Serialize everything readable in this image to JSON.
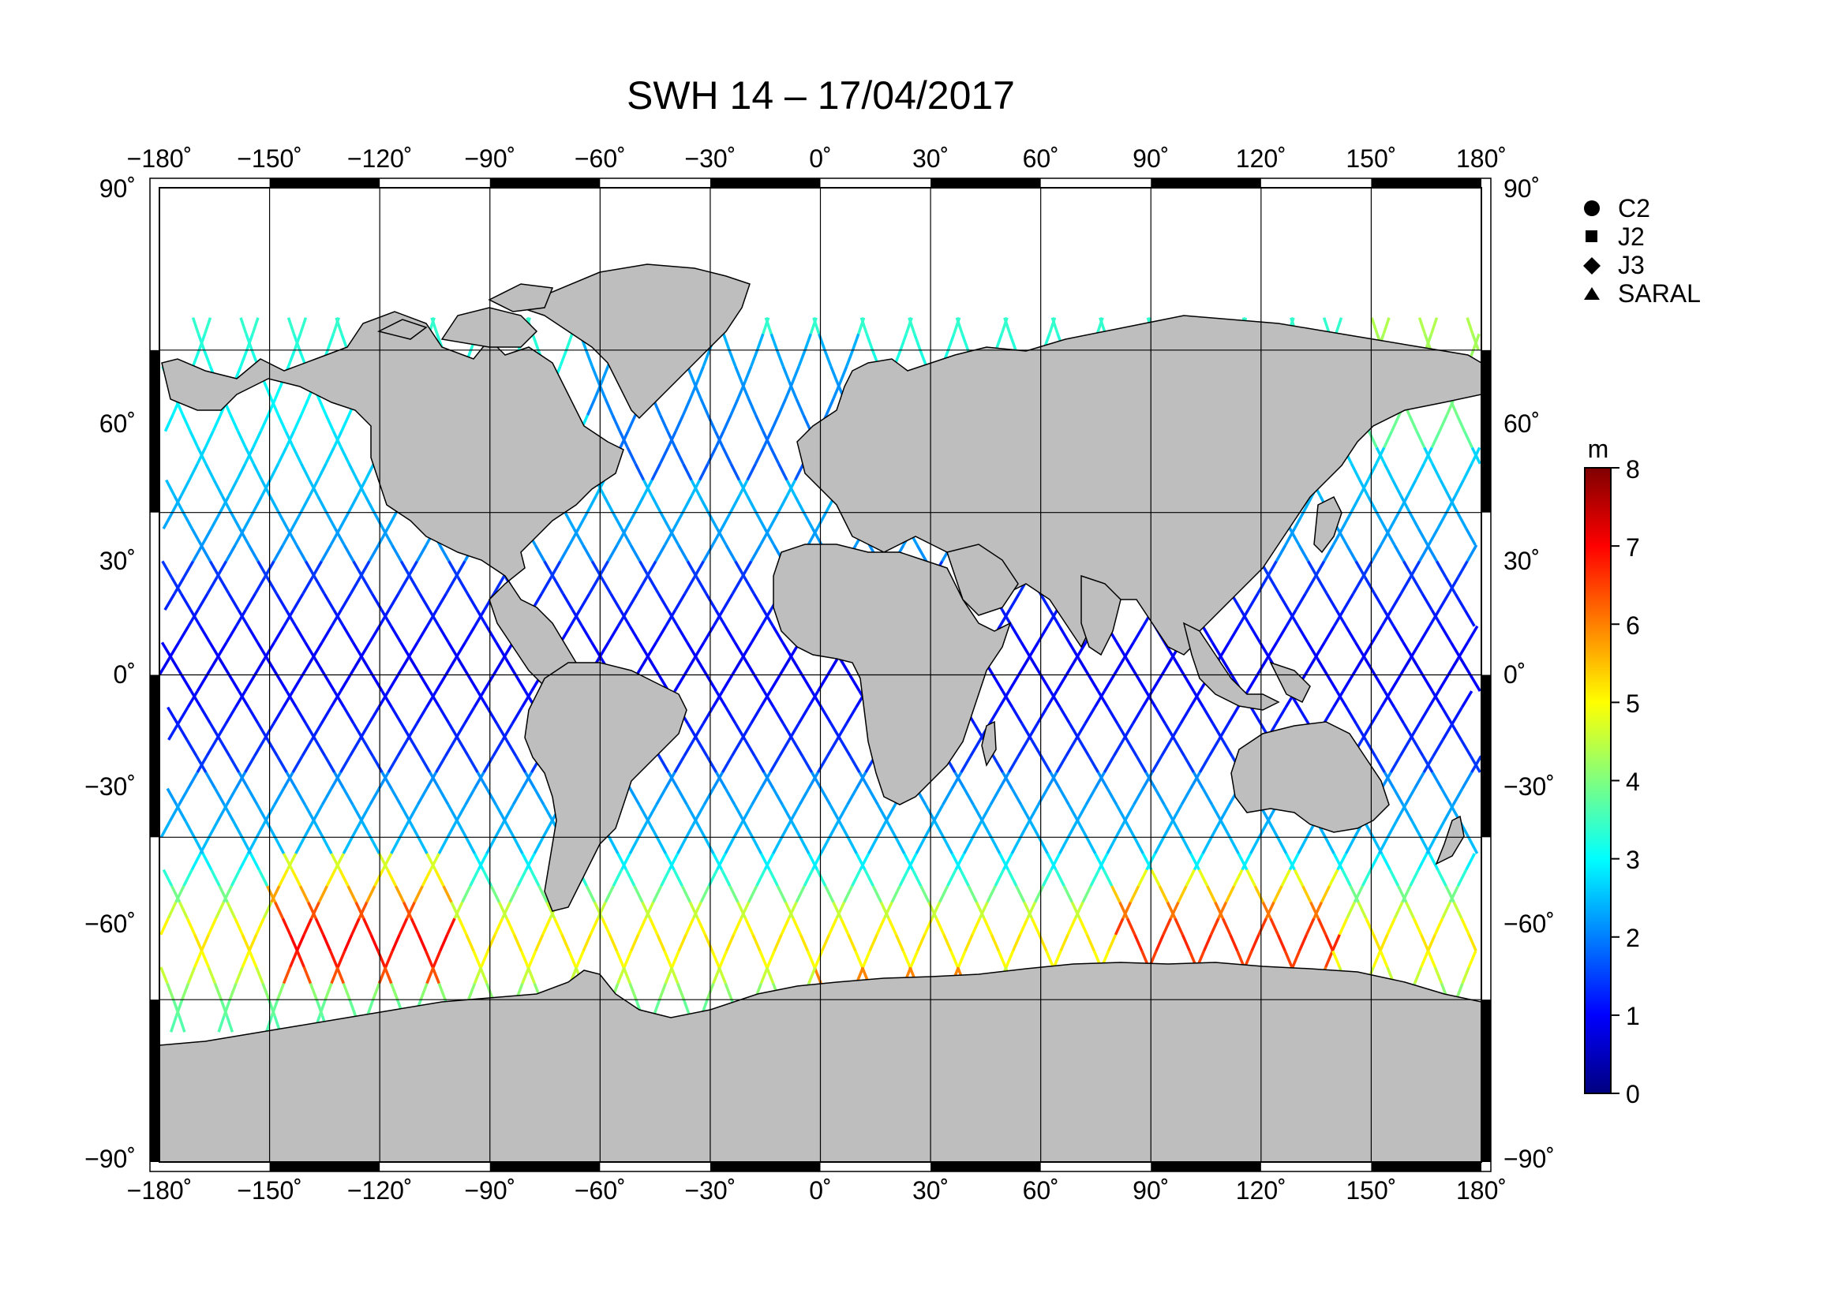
{
  "title": "SWH 14 – 17/04/2017",
  "map": {
    "projection": "equirectangular",
    "lon_range": [
      -180,
      180
    ],
    "lat_range": [
      -90,
      90
    ],
    "lon_ticks": [
      "−180˚",
      "−150˚",
      "−120˚",
      "−90˚",
      "−60˚",
      "−30˚",
      "0˚",
      "30˚",
      "60˚",
      "90˚",
      "120˚",
      "150˚",
      "180˚"
    ],
    "lat_ticks": [
      "90˚",
      "60˚",
      "30˚",
      "0˚",
      "−30˚",
      "−60˚",
      "−90˚"
    ],
    "land_color": "#bebebe",
    "coast_color": "#000000",
    "grid": true
  },
  "legend": {
    "items": [
      {
        "label": "C2",
        "symbol": "circle"
      },
      {
        "label": "J2",
        "symbol": "square"
      },
      {
        "label": "J3",
        "symbol": "diamond"
      },
      {
        "label": "SARAL",
        "symbol": "triangle"
      }
    ]
  },
  "colorbar": {
    "unit": "m",
    "min": 0,
    "max": 8,
    "ticks": [
      "0",
      "1",
      "2",
      "3",
      "4",
      "5",
      "6",
      "7",
      "8"
    ],
    "colormap": "jet"
  }
}
